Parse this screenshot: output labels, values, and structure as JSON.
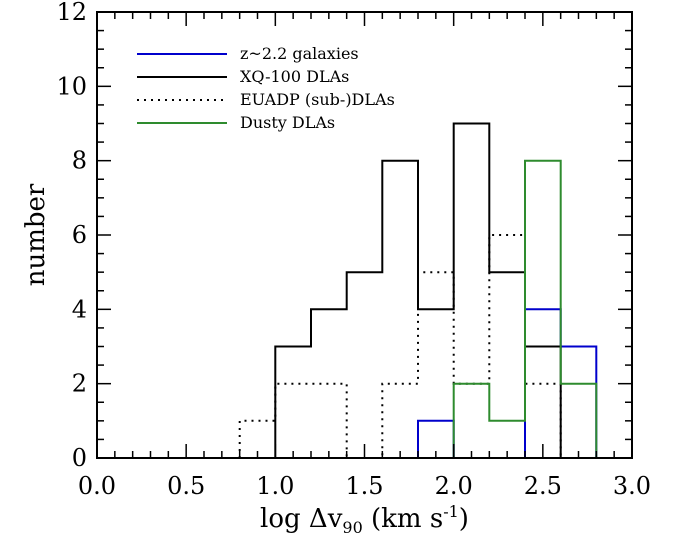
{
  "chart_data": {
    "type": "histogram",
    "xlabel": {
      "main": "log Δv",
      "sub": "90",
      "unit_open": " (km s",
      "sup": "-1",
      "unit_close": ")"
    },
    "ylabel": "number",
    "xlim": [
      0.0,
      3.0
    ],
    "ylim": [
      0,
      12
    ],
    "x_ticks": [
      {
        "value": 0.0,
        "label": "0.0"
      },
      {
        "value": 0.5,
        "label": "0.5"
      },
      {
        "value": 1.0,
        "label": "1.0"
      },
      {
        "value": 1.5,
        "label": "1.5"
      },
      {
        "value": 2.0,
        "label": "2.0"
      },
      {
        "value": 2.5,
        "label": "2.5"
      },
      {
        "value": 3.0,
        "label": "3.0"
      }
    ],
    "y_ticks": [
      {
        "value": 0,
        "label": "0"
      },
      {
        "value": 2,
        "label": "2"
      },
      {
        "value": 4,
        "label": "4"
      },
      {
        "value": 6,
        "label": "6"
      },
      {
        "value": 8,
        "label": "8"
      },
      {
        "value": 10,
        "label": "10"
      },
      {
        "value": 12,
        "label": "12"
      }
    ],
    "legend_position": "top-left",
    "series": [
      {
        "name": "z~2.2 galaxies",
        "color": "#0000cc",
        "style": "solid",
        "bins": [
          {
            "x0": 1.8,
            "x1": 2.0,
            "count": 1
          },
          {
            "x0": 2.0,
            "x1": 2.4,
            "count": 0
          },
          {
            "x0": 2.4,
            "x1": 2.6,
            "count": 4
          },
          {
            "x0": 2.6,
            "x1": 2.8,
            "count": 3
          }
        ]
      },
      {
        "name": "XQ-100 DLAs",
        "color": "#000000",
        "style": "solid",
        "bins": [
          {
            "x0": 1.0,
            "x1": 1.2,
            "count": 3
          },
          {
            "x0": 1.2,
            "x1": 1.4,
            "count": 4
          },
          {
            "x0": 1.4,
            "x1": 1.6,
            "count": 5
          },
          {
            "x0": 1.6,
            "x1": 1.8,
            "count": 8
          },
          {
            "x0": 1.8,
            "x1": 2.0,
            "count": 4
          },
          {
            "x0": 2.0,
            "x1": 2.2,
            "count": 9
          },
          {
            "x0": 2.2,
            "x1": 2.4,
            "count": 5
          },
          {
            "x0": 2.4,
            "x1": 2.6,
            "count": 3
          }
        ]
      },
      {
        "name": "EUADP (sub-)DLAs",
        "color": "#000000",
        "style": "dotted",
        "bins": [
          {
            "x0": 0.8,
            "x1": 1.0,
            "count": 1
          },
          {
            "x0": 1.0,
            "x1": 1.4,
            "count": 2
          },
          {
            "x0": 1.4,
            "x1": 1.6,
            "count": 0
          },
          {
            "x0": 1.6,
            "x1": 1.8,
            "count": 2
          },
          {
            "x0": 1.8,
            "x1": 2.0,
            "count": 5
          },
          {
            "x0": 2.0,
            "x1": 2.2,
            "count": 2
          },
          {
            "x0": 2.2,
            "x1": 2.4,
            "count": 6
          },
          {
            "x0": 2.4,
            "x1": 2.6,
            "count": 2
          }
        ]
      },
      {
        "name": "Dusty DLAs",
        "color": "#2e8b2e",
        "style": "solid",
        "bins": [
          {
            "x0": 2.0,
            "x1": 2.2,
            "count": 2
          },
          {
            "x0": 2.2,
            "x1": 2.4,
            "count": 1
          },
          {
            "x0": 2.4,
            "x1": 2.6,
            "count": 8
          },
          {
            "x0": 2.6,
            "x1": 2.8,
            "count": 2
          }
        ]
      }
    ]
  }
}
